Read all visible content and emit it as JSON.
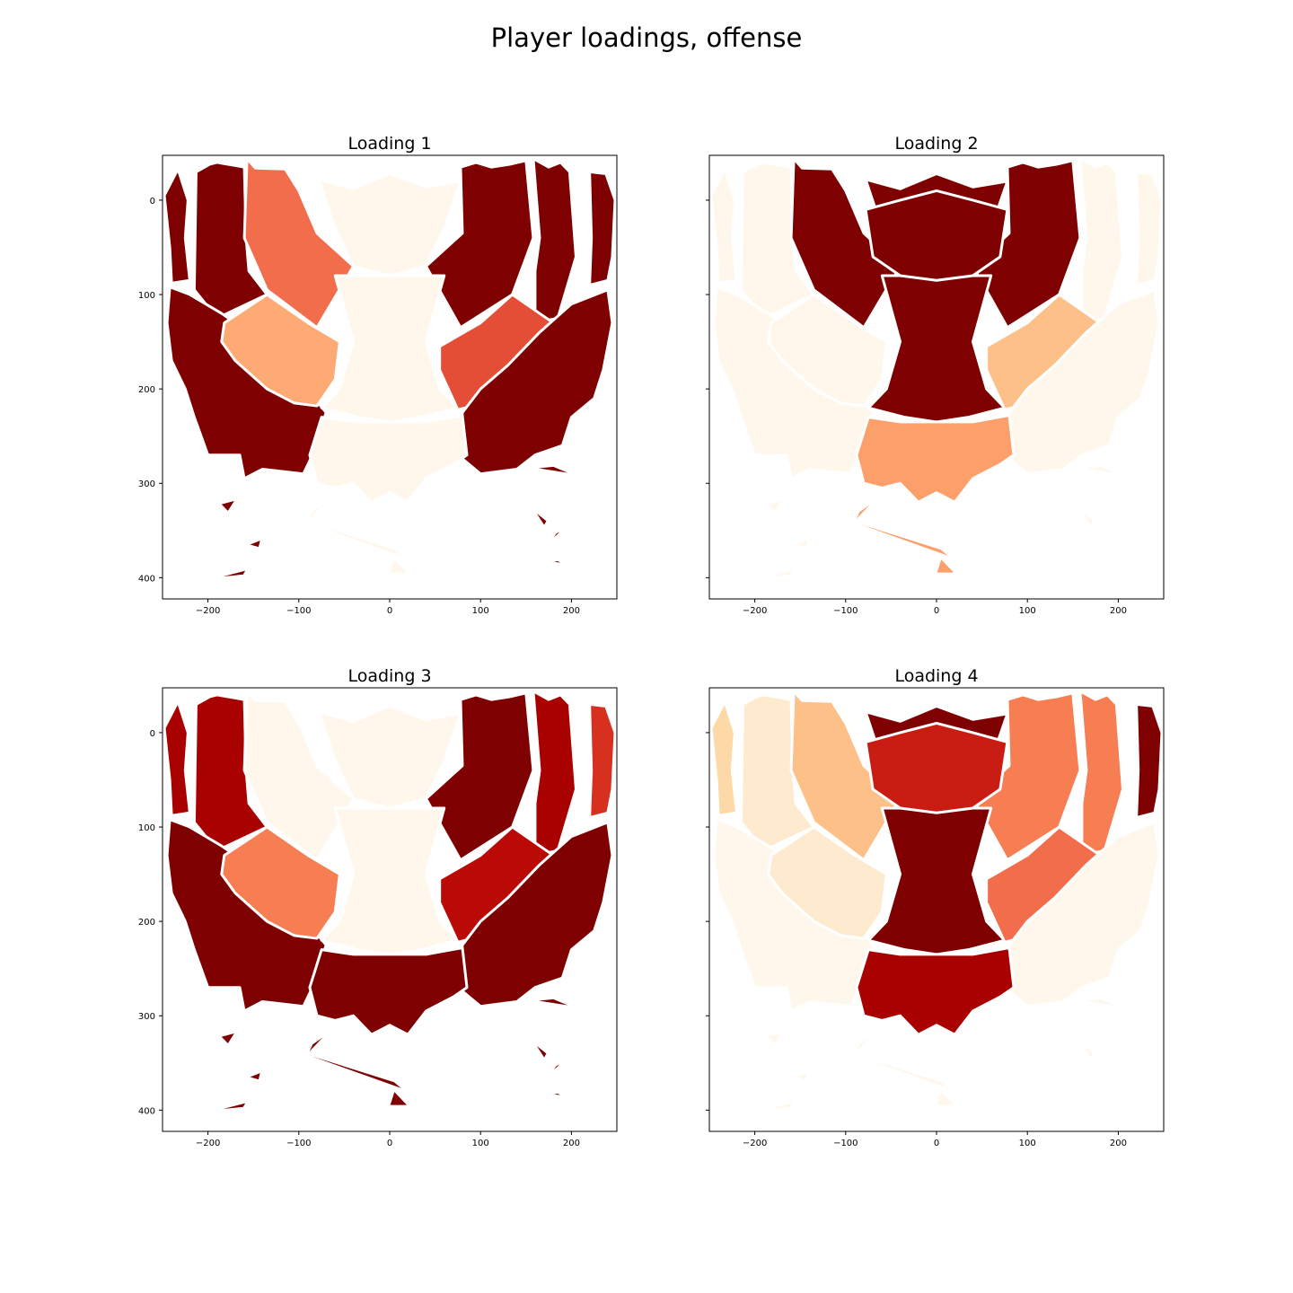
{
  "figure": {
    "suptitle": "Player loadings, offense"
  },
  "colormap": {
    "name": "OrRd",
    "stops": [
      "#fff7ec",
      "#fee8c8",
      "#fdd49e",
      "#fdbb84",
      "#fc8d59",
      "#ef6548",
      "#d7301f",
      "#b30000",
      "#7f0000"
    ]
  },
  "chart_data": [
    {
      "type": "heatmap",
      "title": "Loading 1",
      "xlim": [
        -250,
        250
      ],
      "ylim": [
        422.5,
        -47.5
      ],
      "y_inverted": true,
      "xticks": [
        -200,
        -100,
        0,
        100,
        200
      ],
      "xtick_labels": [
        "−200",
        "−100",
        "0",
        "100",
        "200"
      ],
      "yticks": [
        0,
        100,
        200,
        300,
        400
      ],
      "ytick_labels": [
        "0",
        "100",
        "200",
        "300",
        "400"
      ],
      "show_yticklabels": true,
      "cells": [
        {
          "zone": "left-corner",
          "value": 1.0
        },
        {
          "zone": "left-wing-three",
          "value": 1.0
        },
        {
          "zone": "left-upper-midrange",
          "value": 0.6
        },
        {
          "zone": "top-key",
          "value": 0.0
        },
        {
          "zone": "right-upper-midrange",
          "value": 1.0
        },
        {
          "zone": "right-wing-three",
          "value": 1.0
        },
        {
          "zone": "right-corner",
          "value": 1.0
        },
        {
          "zone": "left-three-arc",
          "value": 1.0
        },
        {
          "zone": "left-lower-midrange",
          "value": 0.42
        },
        {
          "zone": "lane",
          "value": 0.0
        },
        {
          "zone": "right-lower-midrange",
          "value": 0.68
        },
        {
          "zone": "right-three-arc",
          "value": 1.0
        },
        {
          "zone": "top-arc",
          "value": 0.0
        },
        {
          "zone": "backcourt",
          "value": 1.0
        },
        {
          "zone": "deep-center",
          "value": 0.0
        }
      ]
    },
    {
      "type": "heatmap",
      "title": "Loading 2",
      "xlim": [
        -250,
        250
      ],
      "ylim": [
        422.5,
        -47.5
      ],
      "y_inverted": true,
      "xticks": [
        -200,
        -100,
        0,
        100,
        200
      ],
      "xtick_labels": [
        "−200",
        "−100",
        "0",
        "100",
        "200"
      ],
      "yticks": [
        0,
        100,
        200,
        300,
        400
      ],
      "show_yticklabels": false,
      "cells": [
        {
          "zone": "left-corner",
          "value": 0.0
        },
        {
          "zone": "left-wing-three",
          "value": 0.0
        },
        {
          "zone": "left-upper-midrange",
          "value": 1.0
        },
        {
          "zone": "top-key",
          "value": 1.0
        },
        {
          "zone": "right-upper-midrange",
          "value": 1.0
        },
        {
          "zone": "right-wing-three",
          "value": 0.0
        },
        {
          "zone": "right-corner",
          "value": 0.0
        },
        {
          "zone": "left-three-arc",
          "value": 0.0
        },
        {
          "zone": "left-lower-midrange",
          "value": 0.0
        },
        {
          "zone": "lane",
          "value": 1.0
        },
        {
          "zone": "right-lower-midrange",
          "value": 0.35
        },
        {
          "zone": "right-three-arc",
          "value": 0.0
        },
        {
          "zone": "top-arc",
          "value": 0.45
        },
        {
          "zone": "backcourt",
          "value": 0.0
        },
        {
          "zone": "deep-center",
          "value": 0.45
        },
        {
          "zone": "inner-key",
          "value": 1.0
        }
      ]
    },
    {
      "type": "heatmap",
      "title": "Loading 3",
      "xlim": [
        -250,
        250
      ],
      "ylim": [
        422.5,
        -47.5
      ],
      "y_inverted": true,
      "xticks": [
        -200,
        -100,
        0,
        100,
        200
      ],
      "xtick_labels": [
        "−200",
        "−100",
        "0",
        "100",
        "200"
      ],
      "yticks": [
        0,
        100,
        200,
        300,
        400
      ],
      "ytick_labels": [
        "0",
        "100",
        "200",
        "300",
        "400"
      ],
      "show_yticklabels": true,
      "cells": [
        {
          "zone": "left-corner",
          "value": 0.9
        },
        {
          "zone": "left-wing-three",
          "value": 0.9
        },
        {
          "zone": "left-upper-midrange",
          "value": 0.0
        },
        {
          "zone": "top-key",
          "value": 0.0
        },
        {
          "zone": "right-upper-midrange",
          "value": 1.0
        },
        {
          "zone": "right-wing-three",
          "value": 0.9
        },
        {
          "zone": "right-corner",
          "value": 0.75
        },
        {
          "zone": "left-three-arc",
          "value": 1.0
        },
        {
          "zone": "left-lower-midrange",
          "value": 0.55
        },
        {
          "zone": "lane",
          "value": 0.0
        },
        {
          "zone": "right-lower-midrange",
          "value": 0.85
        },
        {
          "zone": "right-three-arc",
          "value": 1.0
        },
        {
          "zone": "top-arc",
          "value": 1.0
        },
        {
          "zone": "backcourt",
          "value": 1.0
        },
        {
          "zone": "deep-center",
          "value": 1.0
        }
      ]
    },
    {
      "type": "heatmap",
      "title": "Loading 4",
      "xlim": [
        -250,
        250
      ],
      "ylim": [
        422.5,
        -47.5
      ],
      "y_inverted": true,
      "xticks": [
        -200,
        -100,
        0,
        100,
        200
      ],
      "xtick_labels": [
        "−200",
        "−100",
        "0",
        "100",
        "200"
      ],
      "yticks": [
        0,
        100,
        200,
        300,
        400
      ],
      "show_yticklabels": false,
      "cells": [
        {
          "zone": "left-corner",
          "value": 0.22
        },
        {
          "zone": "left-wing-three",
          "value": 0.1
        },
        {
          "zone": "left-upper-midrange",
          "value": 0.35
        },
        {
          "zone": "top-key",
          "value": 1.0
        },
        {
          "zone": "right-upper-midrange",
          "value": 0.55
        },
        {
          "zone": "right-wing-three",
          "value": 0.55
        },
        {
          "zone": "right-corner",
          "value": 1.0
        },
        {
          "zone": "left-three-arc",
          "value": 0.0
        },
        {
          "zone": "left-lower-midrange",
          "value": 0.1
        },
        {
          "zone": "lane",
          "value": 1.0
        },
        {
          "zone": "right-lower-midrange",
          "value": 0.6
        },
        {
          "zone": "right-three-arc",
          "value": 0.0
        },
        {
          "zone": "top-arc",
          "value": 0.9
        },
        {
          "zone": "backcourt",
          "value": 0.0
        },
        {
          "zone": "deep-center",
          "value": 0.0
        },
        {
          "zone": "inner-key",
          "value": 0.8
        }
      ]
    }
  ]
}
